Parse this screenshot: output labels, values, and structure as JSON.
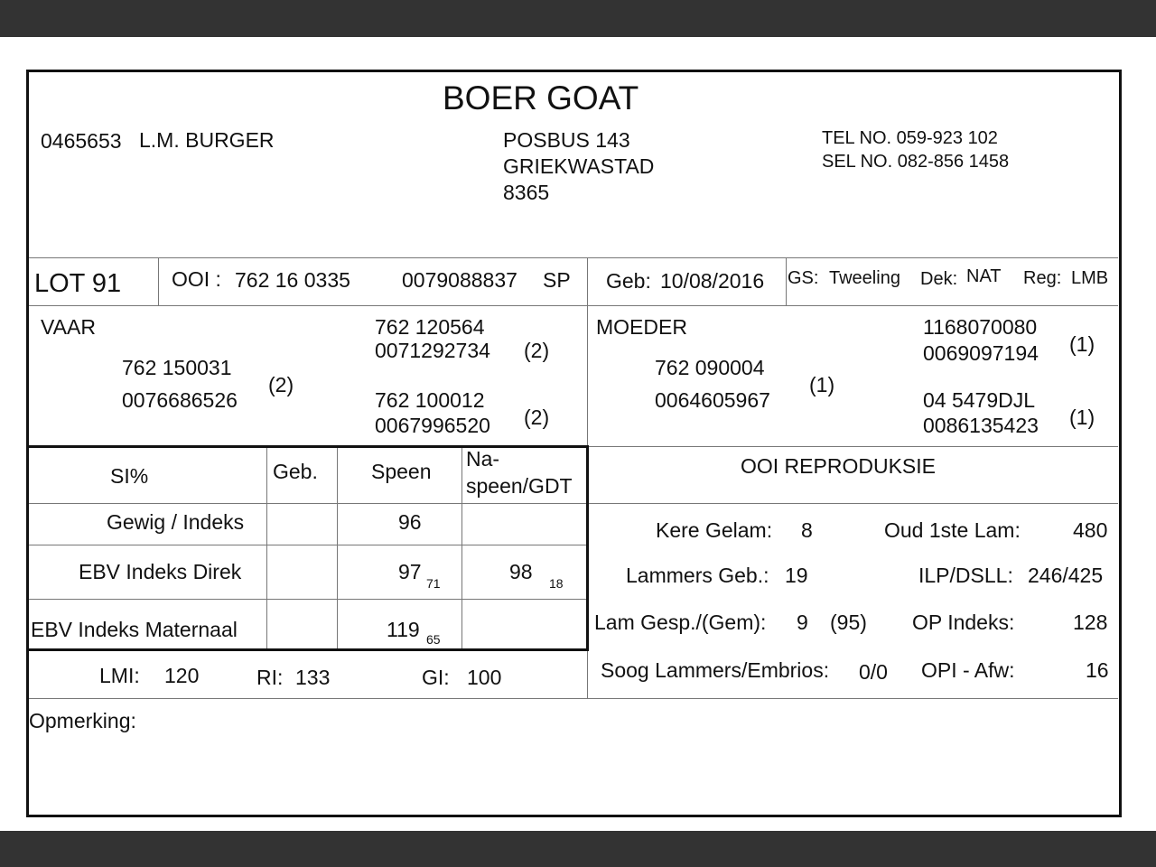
{
  "title": "BOER GOAT",
  "owner": {
    "id": "0465653",
    "name": "L.M. BURGER",
    "address": [
      "POSBUS 143",
      "GRIEKWASTAD",
      "8365"
    ],
    "tel": "TEL NO. 059-923 102",
    "sel": "SEL NO. 082-856 1458"
  },
  "lot": "LOT 91",
  "ooi": {
    "label": "OOI :",
    "id": "762 16 0335",
    "number": "0079088837",
    "suffix": "SP"
  },
  "geb": {
    "label": "Geb:",
    "value": "10/08/2016"
  },
  "gs": {
    "label": "GS:",
    "value": "Tweeling",
    "dek_label": "Dek:",
    "dek": "NAT",
    "reg_label": "Reg:",
    "reg": "LMB"
  },
  "vaar": {
    "label": "VAAR",
    "id": "762 150031",
    "number": "0076686526",
    "code": "(2)",
    "sire": {
      "id": "762 120564",
      "number": "0071292734",
      "code": "(2)"
    },
    "dam": {
      "id": "762 100012",
      "number": "0067996520",
      "code": "(2)"
    }
  },
  "moeder": {
    "label": "MOEDER",
    "id": "762 090004",
    "number": "0064605967",
    "code": "(1)",
    "sire": {
      "id": "1168070080",
      "number": "0069097194",
      "code": "(1)"
    },
    "dam": {
      "id": "04 5479DJL",
      "number": "0086135423",
      "code": "(1)"
    }
  },
  "table": {
    "headers": [
      "SI%",
      "Geb.",
      "Speen",
      "Na-",
      "speen/GDT"
    ],
    "rows": [
      {
        "label": "Gewig / Indeks",
        "geb": "",
        "speen": "96",
        "speen_sub": "",
        "na": "",
        "na_sub": ""
      },
      {
        "label": "EBV Indeks Direk",
        "geb": "",
        "speen": "97",
        "speen_sub": "71",
        "na": "98",
        "na_sub": "18"
      },
      {
        "label": "EBV Indeks Maternaal",
        "geb": "",
        "speen": "119",
        "speen_sub": "65",
        "na": "",
        "na_sub": ""
      }
    ]
  },
  "indices": {
    "lmi_label": "LMI:",
    "lmi": "120",
    "ri_label": "RI:",
    "ri": "133",
    "gi_label": "GI:",
    "gi": "100"
  },
  "repro": {
    "title": "OOI REPRODUKSIE",
    "kere_label": "Kere Gelam:",
    "kere": "8",
    "oud_label": "Oud 1ste Lam:",
    "oud": "480",
    "lammers_label": "Lammers Geb.:",
    "lammers": "19",
    "ilp_label": "ILP/DSLL:",
    "ilp": "246/425",
    "gesp_label": "Lam Gesp./(Gem):",
    "gesp": "9",
    "gem": "(95)",
    "op_label": "OP Indeks:",
    "op": "128",
    "soog_label": "Soog Lammers/Embrios:",
    "soog": "0/0",
    "opi_label": "OPI - Afw:",
    "opi": "16"
  },
  "opmerking": "Opmerking:"
}
